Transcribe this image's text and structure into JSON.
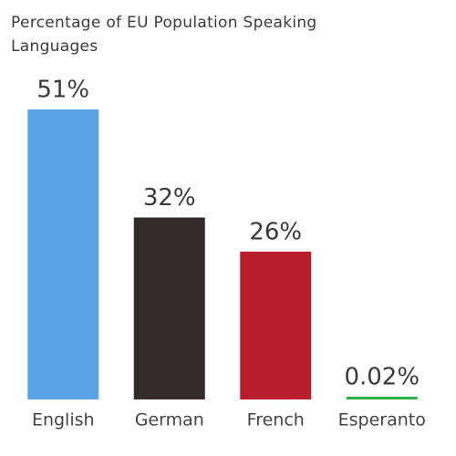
{
  "chart_data": {
    "type": "bar",
    "title": "Percentage of EU Population Speaking Languages",
    "categories": [
      "English",
      "German",
      "French",
      "Esperanto"
    ],
    "values": [
      51,
      32,
      26,
      0.02
    ],
    "value_labels": [
      "51%",
      "32%",
      "26%",
      "0.02%"
    ],
    "colors": [
      "#5ba3e6",
      "#342b2b",
      "#b81e2e",
      "#2db34a"
    ]
  }
}
